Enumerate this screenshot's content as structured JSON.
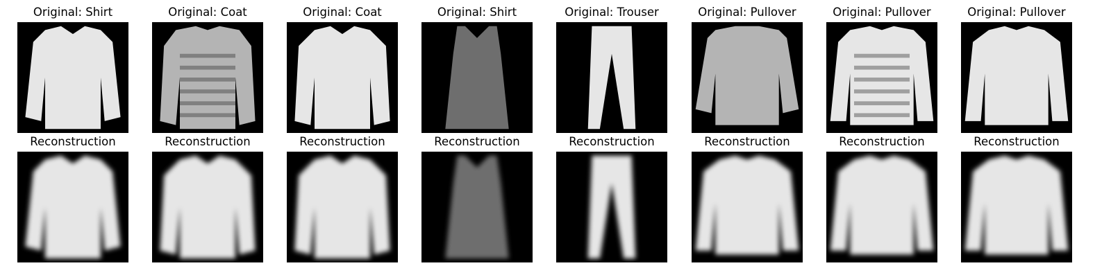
{
  "figure": {
    "originals": [
      {
        "title": "Original: Shirt",
        "item": "shirt"
      },
      {
        "title": "Original: Coat",
        "item": "coat-striped"
      },
      {
        "title": "Original: Coat",
        "item": "coat"
      },
      {
        "title": "Original: Shirt",
        "item": "tank"
      },
      {
        "title": "Original: Trouser",
        "item": "trouser"
      },
      {
        "title": "Original: Pullover",
        "item": "pullover-loose"
      },
      {
        "title": "Original: Pullover",
        "item": "pullover-pattern"
      },
      {
        "title": "Original: Pullover",
        "item": "pullover"
      }
    ],
    "reconstructions": [
      {
        "title": "Reconstruction",
        "item": "shirt"
      },
      {
        "title": "Reconstruction",
        "item": "coat"
      },
      {
        "title": "Reconstruction",
        "item": "coat"
      },
      {
        "title": "Reconstruction",
        "item": "tank"
      },
      {
        "title": "Reconstruction",
        "item": "trouser"
      },
      {
        "title": "Reconstruction",
        "item": "pullover"
      },
      {
        "title": "Reconstruction",
        "item": "pullover"
      },
      {
        "title": "Reconstruction",
        "item": "pullover"
      }
    ],
    "colors": {
      "background": "#000000",
      "garment_light": "#e6e6e6",
      "garment_mid": "#b4b4b4",
      "garment_dark": "#6e6e6e"
    }
  }
}
